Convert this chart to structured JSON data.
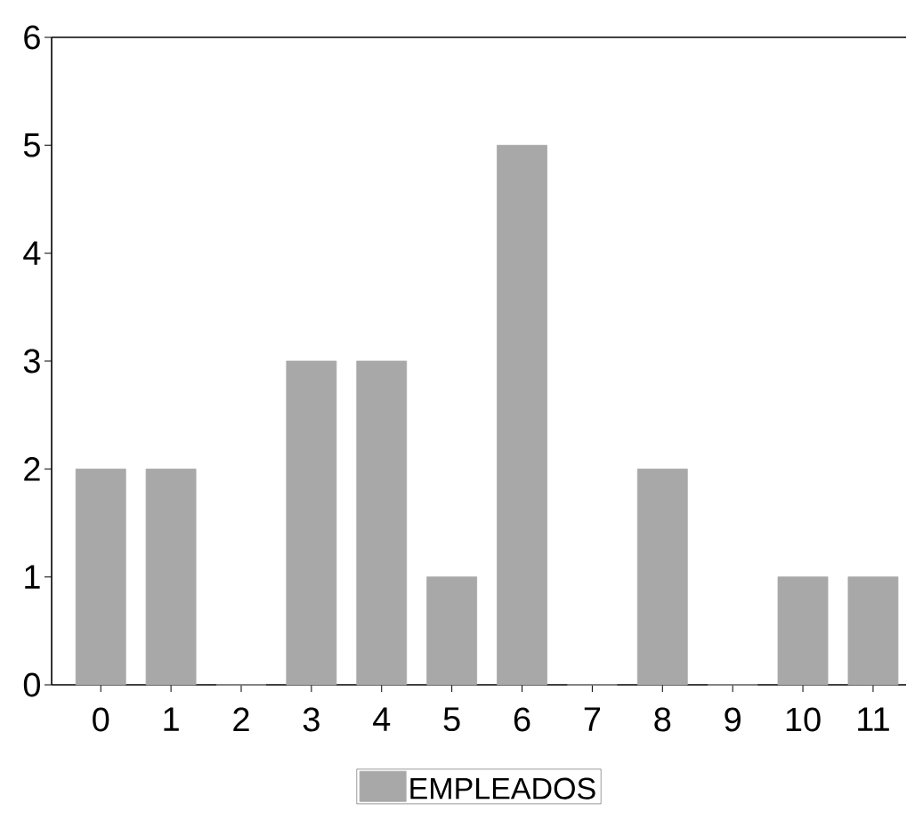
{
  "chart_data": {
    "type": "bar",
    "categories": [
      "0",
      "1",
      "2",
      "3",
      "4",
      "5",
      "6",
      "7",
      "8",
      "9",
      "10",
      "11"
    ],
    "series": [
      {
        "name": "EMPLEADOS",
        "color": "#a8a8a8",
        "values": [
          2,
          2,
          0,
          3,
          3,
          1,
          5,
          0,
          2,
          0,
          1,
          1
        ]
      }
    ],
    "ylim": [
      0,
      6
    ],
    "yticks": [
      0,
      1,
      2,
      3,
      4,
      5,
      6
    ],
    "legend": "bottom"
  }
}
